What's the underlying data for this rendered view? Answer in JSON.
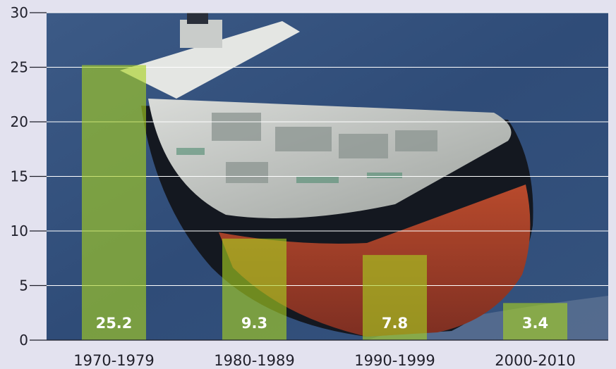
{
  "chart_data": {
    "type": "bar",
    "categories": [
      "1970-1979",
      "1980-1989",
      "1990-1999",
      "2000-2010"
    ],
    "values": [
      25.2,
      9.3,
      7.8,
      3.4
    ],
    "data_labels": [
      "25.2",
      "9.3",
      "7.8",
      "3.4"
    ],
    "yticks": [
      "0",
      "5",
      "10",
      "15",
      "20",
      "25",
      "30"
    ],
    "ylim": [
      0,
      30
    ],
    "grid": true,
    "background": "photo-of-oil-tanker-at-sea",
    "colors": {
      "bar": "#a8d020",
      "page": "#e3e2ef",
      "grid": "#ffffff",
      "axis": "#1f1f2a"
    }
  }
}
